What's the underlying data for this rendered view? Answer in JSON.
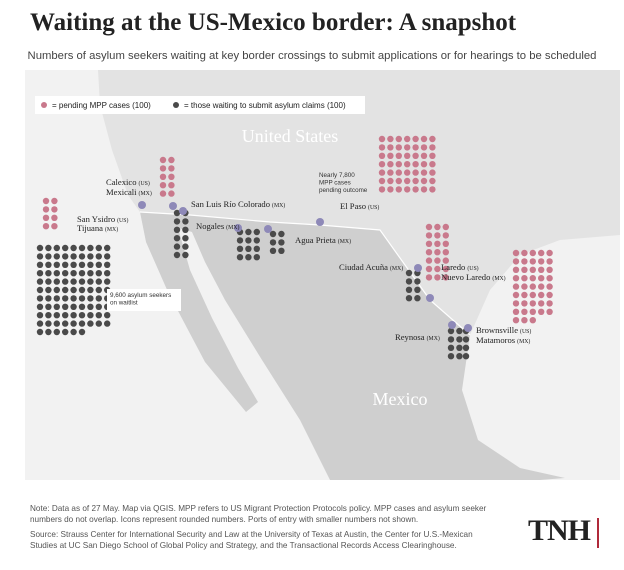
{
  "title": "Waiting at the US-Mexico border: A snapshot",
  "subtitle": "Numbers of asylum seekers waiting at key border crossings to submit applications or for hearings to be scheduled",
  "legend": {
    "mpp": "= pending MPP cases (100)",
    "claims": "= those waiting to submit asylum claims (100)"
  },
  "regions": {
    "us": "United States",
    "mexico": "Mexico"
  },
  "crossings": [
    {
      "name": "San Ysidro",
      "country": "(US)"
    },
    {
      "name": "Tijuana",
      "country": "(MX)"
    },
    {
      "name": "Calexico",
      "country": "(US)"
    },
    {
      "name": "Mexicali",
      "country": "(MX)"
    },
    {
      "name": "San Luis Río Colorado",
      "country": "(MX)"
    },
    {
      "name": "Nogales",
      "country": "(MX)"
    },
    {
      "name": "Agua Prieta",
      "country": "(MX)"
    },
    {
      "name": "El Paso",
      "country": "(US)"
    },
    {
      "name": "Ciudad Acuña",
      "country": "(MX)"
    },
    {
      "name": "Laredo",
      "country": "(US)"
    },
    {
      "name": "Nuevo Laredo",
      "country": "(MX)"
    },
    {
      "name": "Reynosa",
      "country": "(MX)"
    },
    {
      "name": "Brownsville",
      "country": "(US)"
    },
    {
      "name": "Matamoros",
      "country": "(MX)"
    }
  ],
  "annotations": [
    {
      "lines": [
        "9,600 asylum seekers",
        "on waitlist"
      ]
    },
    {
      "lines": [
        "Nearly 7,800",
        "MPP cases",
        "pending outcome"
      ]
    }
  ],
  "icon_groups": [
    {
      "kind": "mpp",
      "icons": 8
    },
    {
      "kind": "claims",
      "icons": 96
    },
    {
      "kind": "mpp",
      "icons": 10
    },
    {
      "kind": "claims",
      "icons": 12
    },
    {
      "kind": "claims",
      "icons": 12
    },
    {
      "kind": "claims",
      "icons": 6
    },
    {
      "kind": "mpp",
      "icons": 49
    },
    {
      "kind": "claims",
      "icons": 8
    },
    {
      "kind": "mpp",
      "icons": 21
    },
    {
      "kind": "claims",
      "icons": 8
    },
    {
      "kind": "mpp",
      "icons": 43
    },
    {
      "kind": "claims",
      "icons": 4
    }
  ],
  "colors": {
    "mpp": "#c9798c",
    "claims": "#4a4a4a",
    "port": "#8e89b8"
  },
  "notes": [
    "Note: Data as of 27 May. Map via QGIS. MPP refers to US Migrant Protection Protocols policy. MPP cases and asylum seeker numbers do not overlap. Icons represent rounded numbers. Ports of entry with smaller numbers not shown.",
    "Source: Strauss Center for International Security and Law at the University of Texas at Austin, the Center for U.S.-Mexican Studies at UC San Diego School of Global Policy and Strategy, and the Transactional Records Access Clearinghouse."
  ],
  "logo": "TNH"
}
